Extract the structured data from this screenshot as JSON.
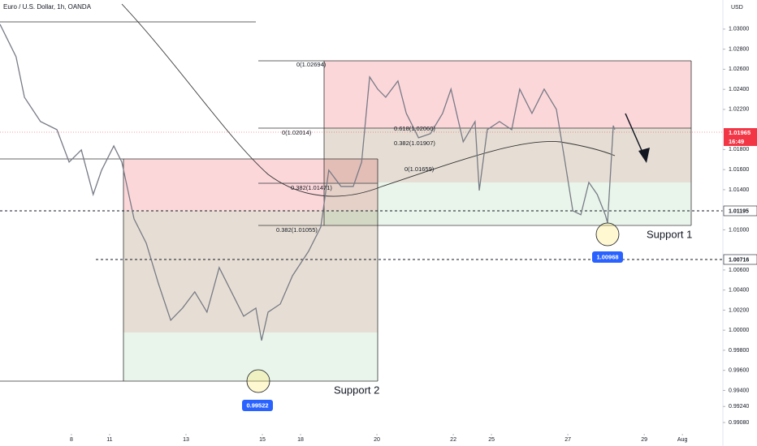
{
  "chart_data": {
    "type": "line",
    "title": "Euro / U.S. Dollar, 1h, OANDA",
    "y_axis_label": "USD",
    "color": "#787b86",
    "x": [
      -1.87,
      -1.45,
      -1.23,
      -0.81,
      -0.38,
      -0.06,
      0.26,
      0.57,
      0.79,
      1.11,
      1.32,
      1.64,
      1.96,
      2.28,
      2.6,
      2.91,
      3.23,
      3.55,
      3.87,
      4.19,
      4.51,
      4.83,
      4.98,
      5.15,
      5.47,
      5.79,
      6.21,
      6.53,
      6.74,
      7.06,
      7.38,
      7.6,
      7.81,
      8.02,
      8.23,
      8.55,
      8.77,
      9.09,
      9.4,
      9.72,
      9.94,
      10.26,
      10.57,
      10.68,
      10.89,
      11.21,
      11.53,
      11.74,
      12.06,
      12.38,
      12.7,
      12.91,
      13.13,
      13.34,
      13.55,
      13.77,
      13.98,
      14.04,
      14.19,
      14.23
    ],
    "values": [
      1.03048,
      1.02725,
      1.02321,
      1.02079,
      1.01998,
      1.01675,
      1.01796,
      1.01352,
      1.01594,
      1.01836,
      1.01675,
      1.01109,
      1.00867,
      1.00463,
      1.00099,
      1.0022,
      1.00382,
      1.0018,
      1.00624,
      1.00382,
      1.00139,
      1.0022,
      0.99897,
      1.0018,
      1.00261,
      1.00543,
      1.00786,
      1.01028,
      1.01594,
      1.01432,
      1.01432,
      1.01675,
      1.02523,
      1.02402,
      1.02321,
      1.02483,
      1.0216,
      1.01917,
      1.01958,
      1.0216,
      1.02402,
      1.01877,
      1.02079,
      1.01392,
      1.01998,
      1.02079,
      1.01998,
      1.02402,
      1.0216,
      1.02402,
      1.022,
      1.01715,
      1.0119,
      1.0115,
      1.01473,
      1.01352,
      1.0115,
      1.01069,
      1.02038,
      1.01998
    ],
    "xlim": [
      -1.87,
      17.06
    ],
    "ylim": [
      0.98846,
      1.0329
    ],
    "xticks": [
      {
        "value": 0,
        "label": "8"
      },
      {
        "value": 1,
        "label": "11"
      },
      {
        "value": 3,
        "label": "13"
      },
      {
        "value": 5,
        "label": "15"
      },
      {
        "value": 6,
        "label": "18"
      },
      {
        "value": 8,
        "label": "20"
      },
      {
        "value": 10,
        "label": "22"
      },
      {
        "value": 11,
        "label": "25"
      },
      {
        "value": 13,
        "label": "27"
      },
      {
        "value": 15,
        "label": "29"
      },
      {
        "value": 16,
        "label": "Aug"
      }
    ],
    "yticks": [
      {
        "value": 1.03,
        "label": "1.03000"
      },
      {
        "value": 1.028,
        "label": "1.02800"
      },
      {
        "value": 1.026,
        "label": "1.02600"
      },
      {
        "value": 1.024,
        "label": "1.02400"
      },
      {
        "value": 1.022,
        "label": "1.02200"
      },
      {
        "value": 1.018,
        "label": "1.01800"
      },
      {
        "value": 1.016,
        "label": "1.01600"
      },
      {
        "value": 1.014,
        "label": "1.01400"
      },
      {
        "value": 1.01,
        "label": "1.01000"
      },
      {
        "value": 1.006,
        "label": "1.00600"
      },
      {
        "value": 1.004,
        "label": "1.00400"
      },
      {
        "value": 1.002,
        "label": "1.00200"
      },
      {
        "value": 1,
        "label": "1.00000"
      },
      {
        "value": 0.998,
        "label": "0.99800"
      },
      {
        "value": 0.996,
        "label": "0.99600"
      },
      {
        "value": 0.994,
        "label": "0.99400"
      },
      {
        "value": 0.9924,
        "label": "0.99240"
      },
      {
        "value": 0.9908,
        "label": "0.99080"
      }
    ],
    "grid": false,
    "annotations": {
      "fib": [
        "0(1.02694)",
        "0(1.02014)",
        "0.382(1.01471)",
        "0.382(1.01055)",
        "0.618(1.02060)",
        "0.382(1.01907)",
        "0(1.01659)"
      ],
      "support": [
        "Support 1",
        "Support 2"
      ],
      "lows": [
        "1.00968",
        "0.99522"
      ],
      "current_price": "1.01965",
      "countdown": "16:49",
      "levels": [
        "1.01195",
        "1.00716"
      ]
    }
  }
}
